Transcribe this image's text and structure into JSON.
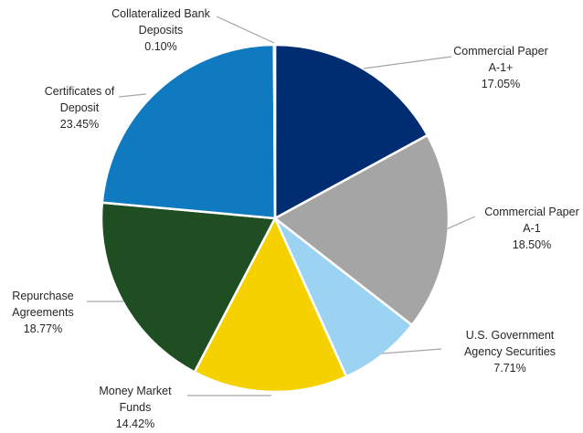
{
  "chart_data": {
    "type": "pie",
    "title": "",
    "start_angle_deg": 0,
    "direction": "clockwise",
    "slices": [
      {
        "label_lines": [
          "Commercial Paper",
          "A-1+"
        ],
        "pct_label": "17.05%",
        "value": 17.05,
        "color": "#002D72"
      },
      {
        "label_lines": [
          "Commercial Paper",
          "A-1"
        ],
        "pct_label": "18.50%",
        "value": 18.5,
        "color": "#A5A5A5"
      },
      {
        "label_lines": [
          "U.S. Government",
          "Agency Securities"
        ],
        "pct_label": "7.71%",
        "value": 7.71,
        "color": "#9DD3F2"
      },
      {
        "label_lines": [
          "Money Market",
          "Funds"
        ],
        "pct_label": "14.42%",
        "value": 14.42,
        "color": "#F5D100"
      },
      {
        "label_lines": [
          "Repurchase",
          "Agreements"
        ],
        "pct_label": "18.77%",
        "value": 18.77,
        "color": "#1F4E23"
      },
      {
        "label_lines": [
          "Certificates of",
          "Deposit"
        ],
        "pct_label": "23.45%",
        "value": 23.45,
        "color": "#0F7AC0"
      },
      {
        "label_lines": [
          "Collateralized Bank",
          "Deposits"
        ],
        "pct_label": "0.10%",
        "value": 0.1,
        "color": "#5B9BD5"
      }
    ]
  }
}
